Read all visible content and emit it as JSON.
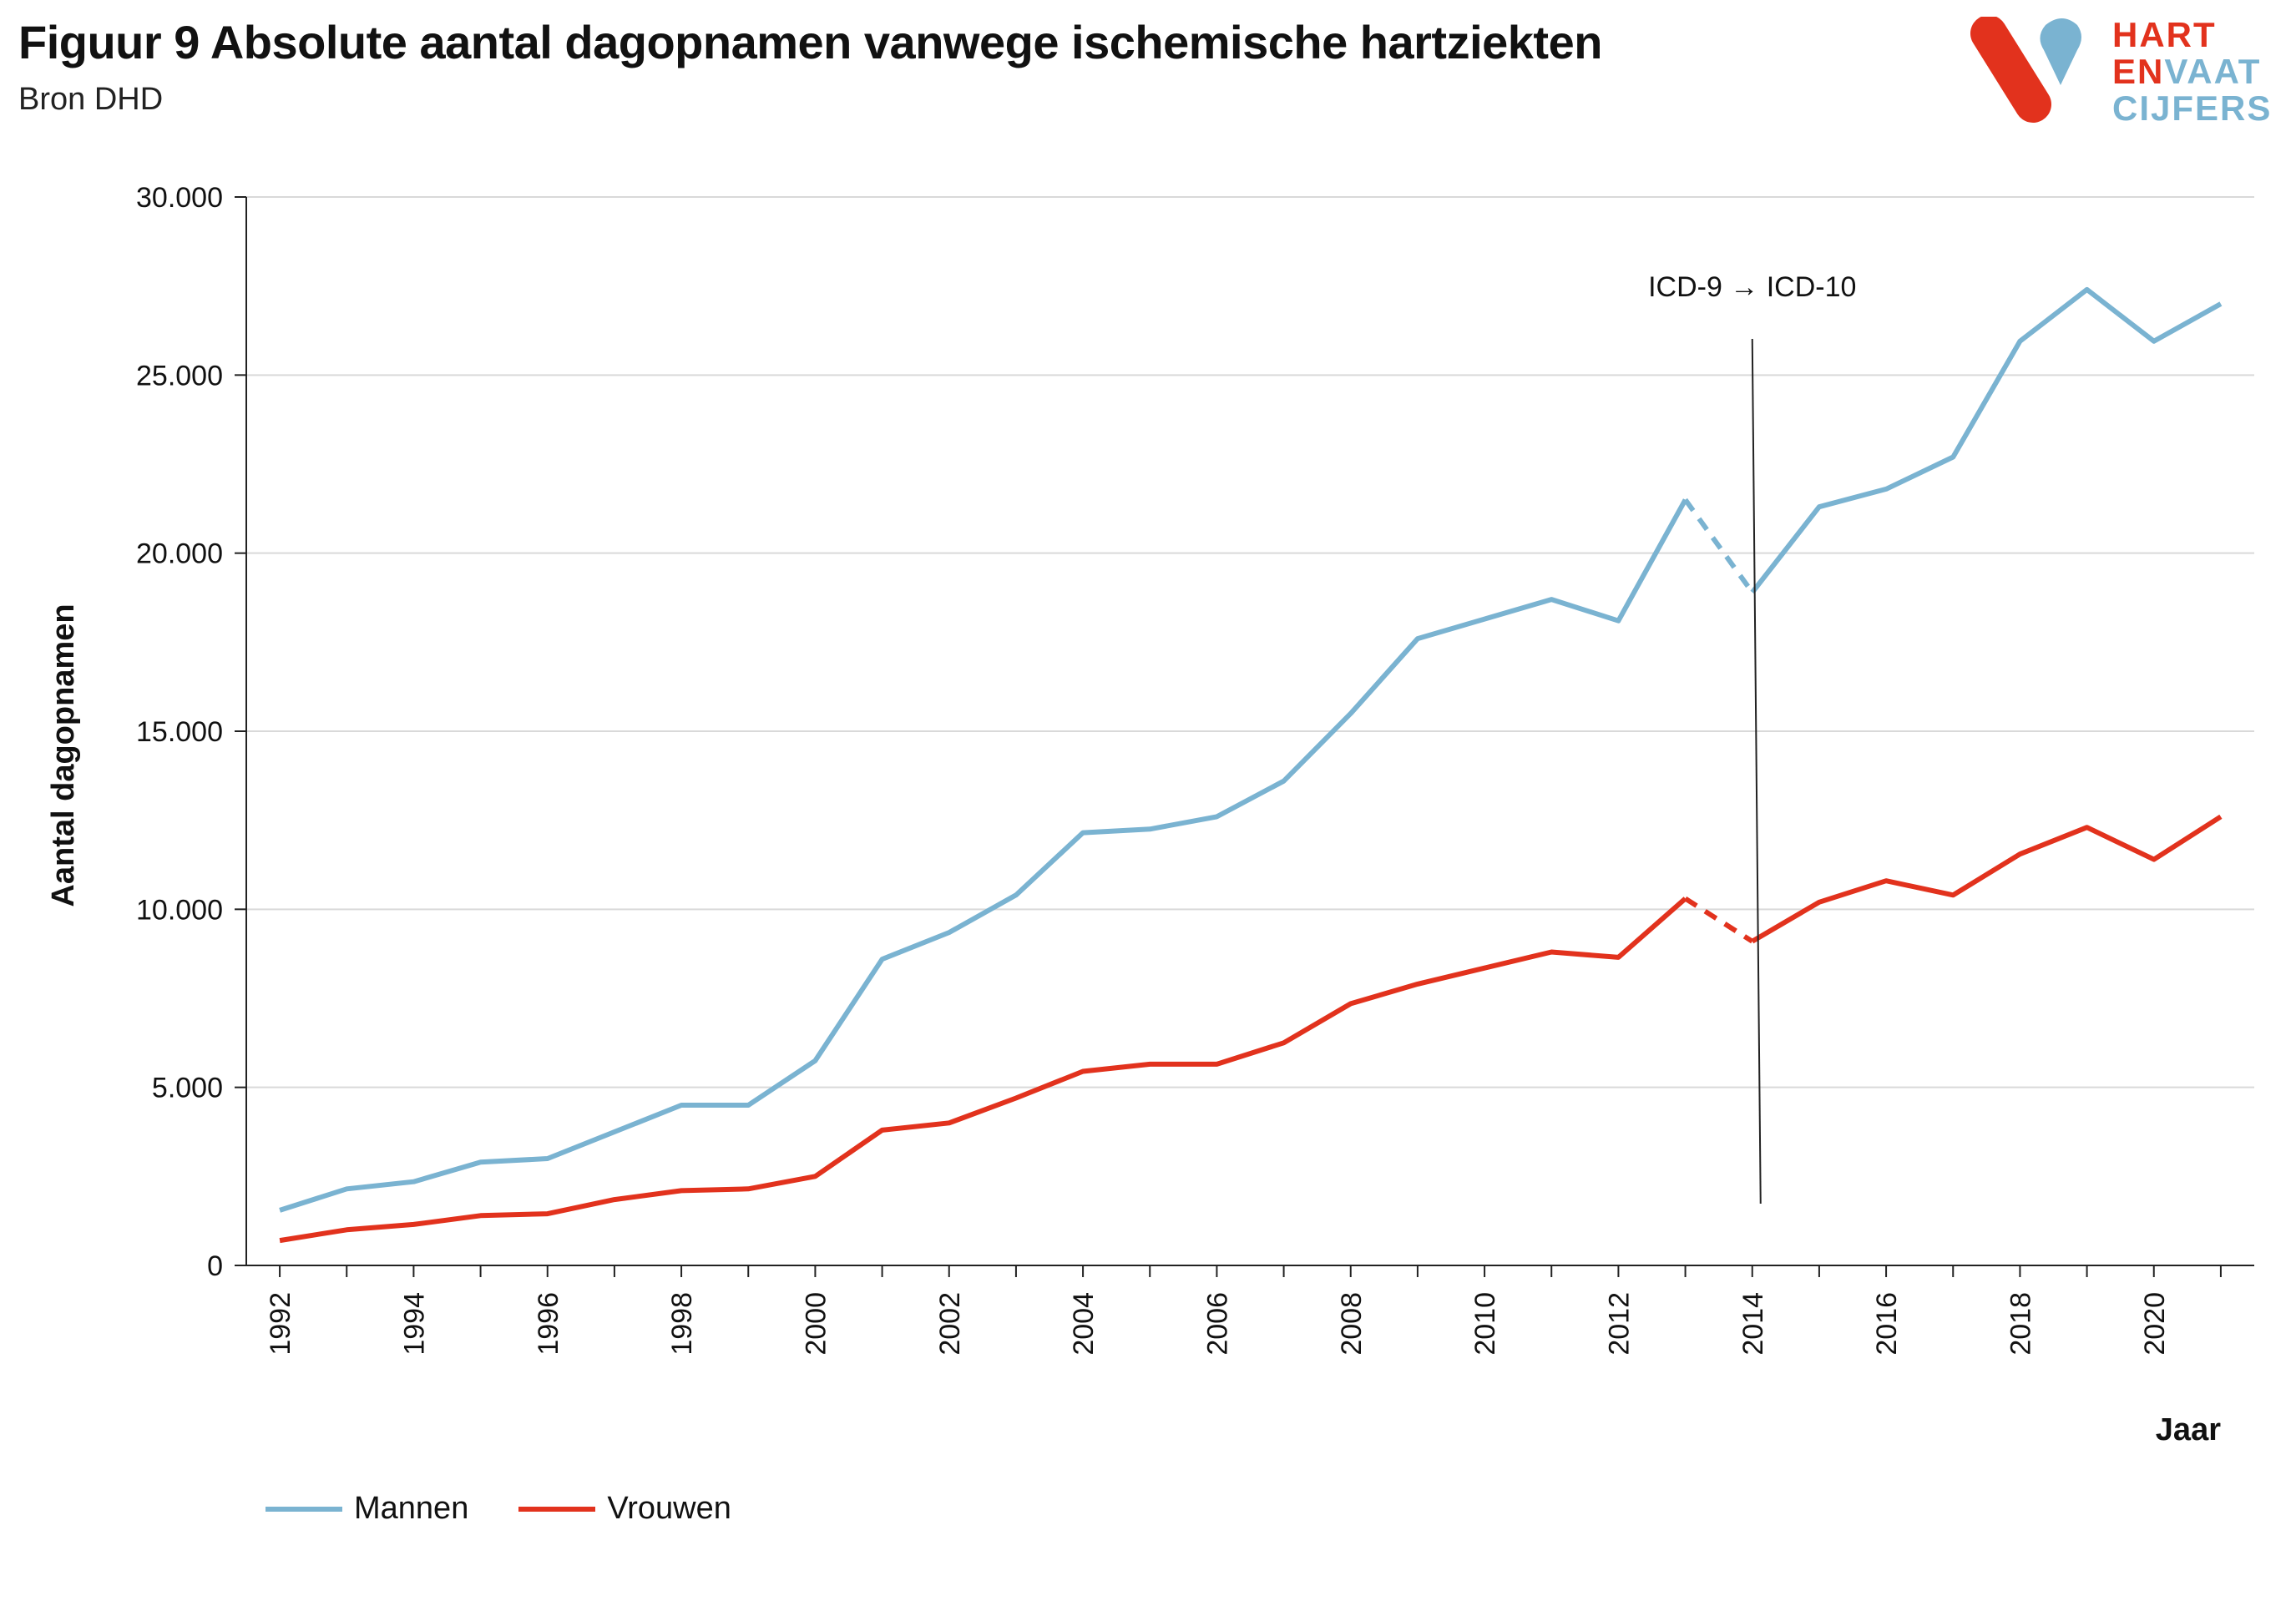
{
  "title": "Figuur 9 Absolute aantal dagopnamen vanwege ischemische hartziekten",
  "subtitle": "Bron DHD",
  "logo": {
    "line1": "HART",
    "line2a": "EN",
    "line2b": "VAAT",
    "line3": "CIJFERS"
  },
  "colors": {
    "mannen": "#7ab3d1",
    "vrouwen": "#e2321d",
    "red": "#e2321d",
    "blue": "#7ab3d1"
  },
  "chart_data": {
    "type": "line",
    "title": "Figuur 9 Absolute aantal dagopnamen vanwege ischemische hartziekten",
    "xlabel": "Jaar",
    "ylabel": "Aantal dagopnamen",
    "ylim": [
      0,
      30000
    ],
    "yticks": [
      0,
      5000,
      10000,
      15000,
      20000,
      25000,
      30000
    ],
    "ytick_labels": [
      "0",
      "5.000",
      "10.000",
      "15.000",
      "20.000",
      "25.000",
      "30.000"
    ],
    "xlim": [
      1992,
      2021
    ],
    "xtick_labels": [
      "1992",
      "1994",
      "1996",
      "1998",
      "2000",
      "2002",
      "2004",
      "2006",
      "2008",
      "2010",
      "2012",
      "2014",
      "2016",
      "2018",
      "2020"
    ],
    "grid": true,
    "legend": "bottom-left",
    "annotation": {
      "text": "ICD-9 → ICD-10",
      "year": 2014
    },
    "dashed_segment": [
      2013,
      2014
    ],
    "x": [
      1992,
      1993,
      1994,
      1995,
      1996,
      1997,
      1998,
      1999,
      2000,
      2001,
      2002,
      2003,
      2004,
      2005,
      2006,
      2007,
      2008,
      2009,
      2010,
      2011,
      2012,
      2013,
      2014,
      2015,
      2016,
      2017,
      2018,
      2019,
      2020,
      2021
    ],
    "series": [
      {
        "name": "Mannen",
        "values": [
          1550,
          2150,
          2350,
          2900,
          3000,
          3750,
          4500,
          4500,
          5750,
          8600,
          9350,
          10400,
          12150,
          12250,
          12600,
          13600,
          15500,
          17600,
          18150,
          18700,
          18100,
          21500,
          18900,
          21300,
          21800,
          22700,
          25950,
          27400,
          25950,
          27000
        ]
      },
      {
        "name": "Vrouwen",
        "values": [
          700,
          1000,
          1150,
          1400,
          1450,
          1850,
          2100,
          2150,
          2500,
          3800,
          4000,
          4700,
          5450,
          5650,
          5650,
          6250,
          7350,
          7900,
          8350,
          8800,
          8650,
          10300,
          9100,
          10200,
          10800,
          10400,
          11550,
          12300,
          11400,
          12600
        ]
      }
    ]
  }
}
